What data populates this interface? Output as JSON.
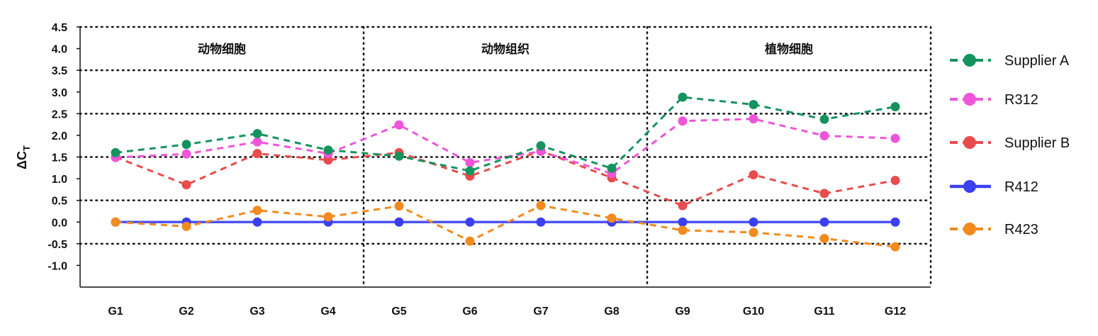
{
  "chart_data": {
    "type": "line",
    "ylabel": "ΔC",
    "ylabel_sub": "T",
    "categories": [
      "G1",
      "G2",
      "G3",
      "G4",
      "G5",
      "G6",
      "G7",
      "G8",
      "G9",
      "G10",
      "G11",
      "G12"
    ],
    "ylim": [
      -1.5,
      4.5
    ],
    "yticks": [
      4.5,
      4.0,
      3.5,
      3.0,
      2.5,
      2.0,
      1.5,
      1.0,
      0.5,
      0.0,
      -0.5,
      -1.0
    ],
    "ytick_labels": [
      "4.5",
      "4.0",
      "3.5",
      "3.0",
      "2.5",
      "2.0",
      "1.5",
      "1.0",
      "0.5",
      "0.0",
      "-0.5",
      "-1.0"
    ],
    "dotted_gridlines_y": [
      4.5,
      3.5,
      2.5,
      1.5,
      0.5,
      -0.5
    ],
    "groups": [
      {
        "label": "动物细胞",
        "span": [
          1,
          4
        ]
      },
      {
        "label": "动物组织",
        "span": [
          5,
          8
        ]
      },
      {
        "label": "植物细胞",
        "span": [
          9,
          12
        ]
      }
    ],
    "legend_placement": "right",
    "series": [
      {
        "name": "Supplier A",
        "color": "#15935f",
        "dashed": true,
        "values": [
          1.6,
          1.79,
          2.04,
          1.66,
          1.52,
          1.18,
          1.76,
          1.24,
          2.88,
          2.71,
          2.37,
          2.66
        ]
      },
      {
        "name": "R312",
        "color": "#ee55d8",
        "dashed": true,
        "values": [
          1.49,
          1.57,
          1.85,
          1.58,
          2.24,
          1.37,
          1.63,
          1.12,
          2.33,
          2.38,
          1.99,
          1.93
        ]
      },
      {
        "name": "Supplier B",
        "color": "#e84c4c",
        "dashed": true,
        "values": [
          1.5,
          0.86,
          1.58,
          1.43,
          1.6,
          1.06,
          1.64,
          1.02,
          0.38,
          1.09,
          0.66,
          0.96
        ]
      },
      {
        "name": "R412",
        "color": "#3a3ff0",
        "dashed": false,
        "values": [
          0.0,
          0.0,
          0.0,
          0.0,
          0.0,
          0.0,
          0.0,
          0.0,
          0.0,
          0.0,
          0.0,
          0.0
        ]
      },
      {
        "name": "R423",
        "color": "#f28a1e",
        "dashed": true,
        "values": [
          0.0,
          -0.1,
          0.27,
          0.12,
          0.37,
          -0.44,
          0.38,
          0.09,
          -0.19,
          -0.24,
          -0.38,
          -0.57
        ]
      }
    ]
  }
}
